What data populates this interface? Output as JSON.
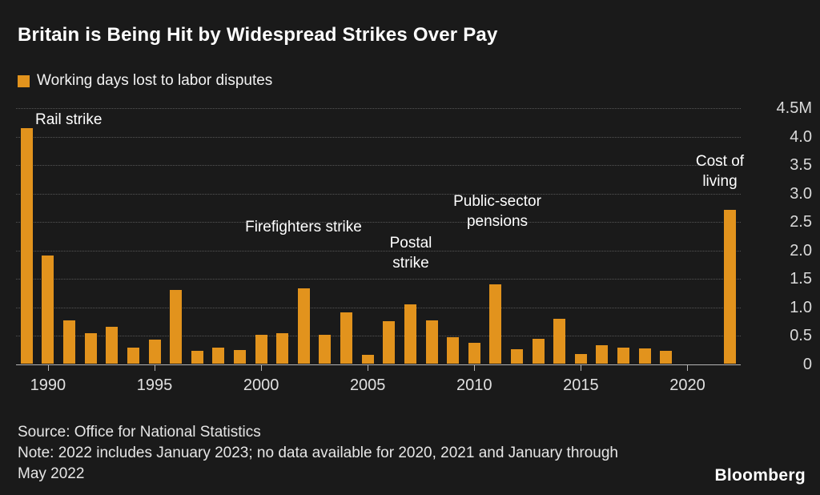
{
  "header": {
    "title": "Britain is Being Hit by Widespread Strikes Over Pay",
    "legend_label": "Working days lost to labor disputes"
  },
  "chart_data": {
    "type": "bar",
    "title": "Britain is Being Hit by Widespread Strikes Over Pay",
    "legend": "Working days lost to labor disputes",
    "unit": "millions of working days lost per year",
    "bar_color": "#E2931D",
    "background_color": "#1A1A1A",
    "grid": "horizontal-dotted",
    "legend_position": "top-left",
    "x": [
      1989,
      1990,
      1991,
      1992,
      1993,
      1994,
      1995,
      1996,
      1997,
      1998,
      1999,
      2000,
      2001,
      2002,
      2003,
      2004,
      2005,
      2006,
      2007,
      2008,
      2009,
      2010,
      2011,
      2012,
      2013,
      2014,
      2015,
      2016,
      2017,
      2018,
      2019,
      2020,
      2021,
      2022
    ],
    "values": [
      4.13,
      1.9,
      0.76,
      0.53,
      0.65,
      0.28,
      0.42,
      1.3,
      0.23,
      0.28,
      0.24,
      0.5,
      0.53,
      1.32,
      0.5,
      0.9,
      0.16,
      0.75,
      1.04,
      0.76,
      0.46,
      0.37,
      1.39,
      0.25,
      0.44,
      0.79,
      0.17,
      0.32,
      0.28,
      0.27,
      0.23,
      0,
      0,
      2.7
    ],
    "ylim": [
      0,
      4.5
    ],
    "yticks": [
      {
        "value": 0,
        "label": "0"
      },
      {
        "value": 0.5,
        "label": "0.5"
      },
      {
        "value": 1,
        "label": "1.0"
      },
      {
        "value": 1.5,
        "label": "1.5"
      },
      {
        "value": 2,
        "label": "2.0"
      },
      {
        "value": 2.5,
        "label": "2.5"
      },
      {
        "value": 3,
        "label": "3.0"
      },
      {
        "value": 3.5,
        "label": "3.5"
      },
      {
        "value": 4,
        "label": "4.0"
      },
      {
        "value": 4.5,
        "label": "4.5M"
      }
    ],
    "xticks": [
      1990,
      1995,
      2000,
      2005,
      2010,
      2015,
      2020
    ],
    "annotations": [
      {
        "id": "rail-strike",
        "lines": [
          "Rail strike"
        ],
        "year": 1989
      },
      {
        "id": "firefighters-strike",
        "lines": [
          "Firefighters strike"
        ],
        "year": 2002
      },
      {
        "id": "postal-strike",
        "lines": [
          "Postal",
          "strike"
        ],
        "year": 2007
      },
      {
        "id": "public-sector-pensions",
        "lines": [
          "Public-sector",
          "pensions"
        ],
        "year": 2011
      },
      {
        "id": "cost-of-living",
        "lines": [
          "Cost of",
          "living"
        ],
        "year": 2022
      }
    ]
  },
  "footer": {
    "source": "Source: Office for National Statistics",
    "note": "Note: 2022 includes January 2023; no data available for 2020, 2021 and January through May 2022",
    "brand": "Bloomberg"
  }
}
